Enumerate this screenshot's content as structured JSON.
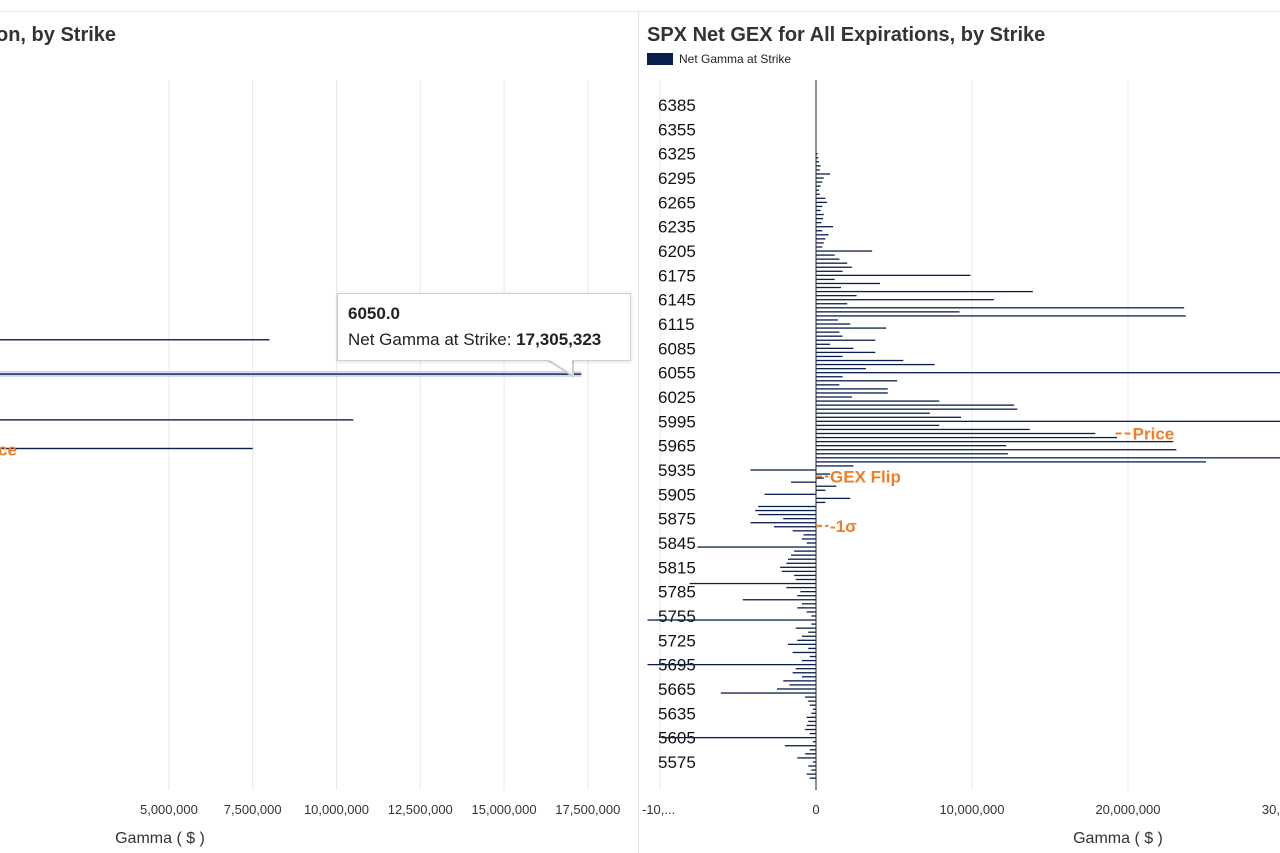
{
  "left_chart": {
    "title": "on, by Strike",
    "xlabel": "Gamma ( $ )",
    "price_marker": "ce"
  },
  "right_chart": {
    "title": "SPX Net GEX for All Expirations, by Strike",
    "legend": "Net Gamma at Strike",
    "xlabel": "Gamma ( $ )",
    "markers": {
      "price": "Price",
      "gex_flip": "GEX Flip",
      "minus_sigma": "-1σ"
    }
  },
  "tooltip": {
    "title": "6050.0",
    "label": "Net Gamma at Strike: ",
    "value": "17,305,323"
  },
  "colors": {
    "bar": "#0b1f4d",
    "marker": "#f07e26",
    "grid": "#e8e8e8"
  },
  "chart_data": [
    {
      "type": "bar",
      "orientation": "horizontal",
      "xlabel": "Gamma ( $ )",
      "x_ticks": [
        "5,000,000",
        "7,500,000",
        "10,000,000",
        "12,500,000",
        "15,000,000",
        "17,500,000"
      ],
      "x_tick_values": [
        5000000,
        7500000,
        10000000,
        12500000,
        15000000,
        17500000
      ],
      "xlim": [
        -100000,
        18400000
      ],
      "grid": true,
      "highlight": {
        "strike": 6050.0,
        "value": 17305323
      },
      "bars": [
        {
          "strike": 6080,
          "value": 8000000
        },
        {
          "strike": 6050,
          "value": 17305323
        },
        {
          "strike": 6010,
          "value": 10500000
        },
        {
          "strike": 5985,
          "value": 7500000
        }
      ],
      "price_strike": 5985
    },
    {
      "type": "bar",
      "orientation": "horizontal",
      "title": "SPX Net GEX for All Expirations, by Strike",
      "xlabel": "Gamma ( $ )",
      "legend": [
        "Net Gamma at Strike"
      ],
      "legend_position": "top-left",
      "y_ticks": [
        6385,
        6355,
        6325,
        6295,
        6265,
        6235,
        6205,
        6175,
        6145,
        6115,
        6085,
        6055,
        6025,
        5995,
        5965,
        5935,
        5905,
        5875,
        5845,
        5815,
        5785,
        5755,
        5725,
        5695,
        5665,
        5635,
        5605,
        5575
      ],
      "x_ticks": [
        "-10,...",
        "0",
        "10,000,000",
        "20,000,000",
        "30,"
      ],
      "x_tick_values": [
        -10000000,
        0,
        10000000,
        20000000,
        30000000
      ],
      "xlim": [
        -10800000,
        30100000
      ],
      "grid": true,
      "price_strike": 5980,
      "gex_flip_strike": 5927,
      "minus_1_sigma_strike": 5866,
      "series": [
        {
          "name": "Net Gamma at Strike",
          "strikes": [
            6325,
            6320,
            6315,
            6310,
            6305,
            6300,
            6295,
            6290,
            6285,
            6280,
            6275,
            6270,
            6265,
            6260,
            6255,
            6250,
            6245,
            6240,
            6235,
            6230,
            6225,
            6220,
            6215,
            6210,
            6205,
            6200,
            6195,
            6190,
            6185,
            6180,
            6175,
            6170,
            6165,
            6160,
            6155,
            6150,
            6145,
            6140,
            6135,
            6130,
            6125,
            6120,
            6115,
            6110,
            6105,
            6100,
            6095,
            6090,
            6085,
            6080,
            6075,
            6070,
            6065,
            6060,
            6055,
            6050,
            6045,
            6040,
            6035,
            6030,
            6025,
            6020,
            6015,
            6010,
            6005,
            6000,
            5995,
            5990,
            5985,
            5980,
            5975,
            5970,
            5965,
            5960,
            5955,
            5950,
            5945,
            5940,
            5935,
            5930,
            5925,
            5920,
            5915,
            5910,
            5905,
            5900,
            5895,
            5890,
            5885,
            5880,
            5875,
            5870,
            5865,
            5860,
            5855,
            5850,
            5845,
            5840,
            5835,
            5830,
            5825,
            5820,
            5815,
            5810,
            5805,
            5800,
            5795,
            5790,
            5785,
            5780,
            5775,
            5770,
            5765,
            5760,
            5755,
            5750,
            5745,
            5740,
            5735,
            5730,
            5725,
            5720,
            5715,
            5710,
            5705,
            5700,
            5695,
            5690,
            5685,
            5680,
            5675,
            5670,
            5665,
            5660,
            5655,
            5650,
            5645,
            5640,
            5635,
            5630,
            5625,
            5620,
            5615,
            5610,
            5605,
            5600,
            5595,
            5590,
            5585,
            5580,
            5575,
            5570,
            5565,
            5560,
            5555
          ],
          "values": [
            100000,
            150000,
            200000,
            300000,
            250000,
            900000,
            500000,
            400000,
            300000,
            200000,
            250000,
            600000,
            700000,
            400000,
            300000,
            500000,
            450000,
            350000,
            1100000,
            400000,
            800000,
            600000,
            500000,
            400000,
            3600000,
            1200000,
            1500000,
            2000000,
            2300000,
            1700000,
            9900000,
            1200000,
            4100000,
            1600000,
            13900000,
            2600000,
            11400000,
            2000000,
            23600000,
            9200000,
            23700000,
            1400000,
            2200000,
            4500000,
            1500000,
            1700000,
            3800000,
            900000,
            2400000,
            3800000,
            1700000,
            5600000,
            7600000,
            3200000,
            30100000,
            1700000,
            5200000,
            1500000,
            4600000,
            4600000,
            2300000,
            7900000,
            12700000,
            12900000,
            7300000,
            9300000,
            30100000,
            7900000,
            13700000,
            17900000,
            19300000,
            22900000,
            12200000,
            23100000,
            12300000,
            30000000,
            25000000,
            2400000,
            -4200000,
            900000,
            500000,
            -1600000,
            1300000,
            600000,
            -3300000,
            2200000,
            600000,
            -3700000,
            -3900000,
            -3700000,
            -2100000,
            -4200000,
            -2700000,
            -1500000,
            -800000,
            -900000,
            -600000,
            -7600000,
            -1400000,
            -1600000,
            -1800000,
            -1900000,
            -2300000,
            -2200000,
            -1400000,
            -1300000,
            -8100000,
            -1900000,
            -1000000,
            -1200000,
            -4700000,
            -900000,
            -1200000,
            -600000,
            -300000,
            -10800000,
            -300000,
            -1300000,
            -500000,
            -900000,
            -1200000,
            -1800000,
            -500000,
            -1500000,
            -400000,
            -900000,
            -10800000,
            -1300000,
            -1500000,
            -900000,
            -2100000,
            -1700000,
            -2500000,
            -6100000,
            -700000,
            -500000,
            -400000,
            -200000,
            -300000,
            -600000,
            -500000,
            -600000,
            -700000,
            -400000,
            -9900000,
            -200000,
            -2000000,
            -400000,
            -700000,
            -1200000,
            -200000,
            -500000,
            -300000,
            -600000,
            -400000,
            -5500000
          ]
        }
      ]
    }
  ]
}
